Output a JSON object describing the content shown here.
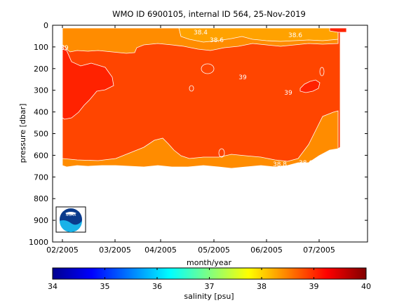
{
  "colors": {
    "s38_5": "#ff8c00",
    "s39": "#ff4500",
    "s39_5": "#ff2200",
    "s38": "#ffa200",
    "contour": "#ffffff",
    "noaa_blue": "#0a3a8c",
    "noaa_light": "#19b2e8"
  },
  "logo": {
    "name": "NOAA"
  },
  "chart_data": {
    "type": "heatmap",
    "title": "WMO ID 6900105, internal ID 564, 25-Nov-2019",
    "xlabel": "month/year",
    "ylabel": "pressure [dbar]",
    "x_ticks": [
      "02/2005",
      "03/2005",
      "04/2005",
      "05/2005",
      "06/2005",
      "07/2005"
    ],
    "y_ticks": [
      "0",
      "100",
      "200",
      "300",
      "400",
      "500",
      "600",
      "700",
      "800",
      "900",
      "1000"
    ],
    "ylim": [
      1000,
      0
    ],
    "y_reversed": true,
    "colorbar": {
      "label": "salinity [psu]",
      "ticks": [
        "34",
        "35",
        "36",
        "37",
        "38",
        "39",
        "40"
      ],
      "range": [
        34,
        40
      ],
      "colormap": "jet"
    },
    "contour_labels": [
      "38.4",
      "38.6",
      "39",
      "39",
      "38.6",
      "38.6",
      "38.8",
      "39"
    ],
    "data_extent": {
      "x_start": "02/2005",
      "x_end": "07/2005",
      "pressure_max": 650
    },
    "regions": [
      {
        "salinity": 38.5,
        "description": "upper layer 0-100 dbar and lower band ~550-650 dbar"
      },
      {
        "salinity": 39,
        "description": "core 100-550 dbar"
      },
      {
        "salinity": 39.5,
        "description": "early Feb-Mar 100-430 dbar and patch near 06/2005 ~250 dbar"
      }
    ]
  }
}
